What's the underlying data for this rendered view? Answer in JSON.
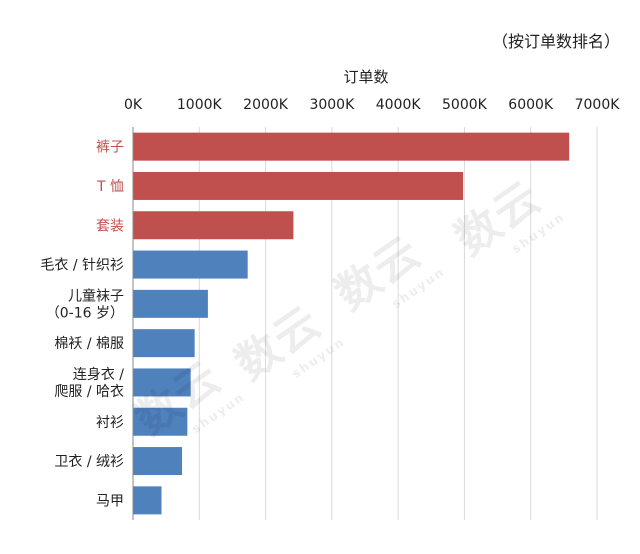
{
  "note": "（按订单数排名）",
  "watermark": {
    "cn": "数云",
    "en": "shuyun"
  },
  "chart_data": {
    "type": "bar",
    "orientation": "horizontal",
    "xlabel": "订单数",
    "xlim": [
      0,
      7000
    ],
    "xticks": [
      0,
      1000,
      2000,
      3000,
      4000,
      5000,
      6000,
      7000
    ],
    "xtick_labels": [
      "0K",
      "1000K",
      "2000K",
      "3000K",
      "4000K",
      "5000K",
      "6000K",
      "7000K"
    ],
    "grid": true,
    "categories": [
      [
        "裤子"
      ],
      [
        "T 恤"
      ],
      [
        "套装"
      ],
      [
        "毛衣 / 针织衫"
      ],
      [
        "儿童袜子",
        "（0-16 岁）"
      ],
      [
        "棉袄 / 棉服"
      ],
      [
        "连身衣 /",
        "爬服 / 哈衣"
      ],
      [
        "衬衫"
      ],
      [
        "卫衣 / 绒衫"
      ],
      [
        "马甲"
      ]
    ],
    "values": [
      6580,
      4980,
      2420,
      1730,
      1130,
      930,
      870,
      820,
      740,
      430
    ],
    "colors": [
      "#c0504d",
      "#c0504d",
      "#c0504d",
      "#4f81bd",
      "#4f81bd",
      "#4f81bd",
      "#4f81bd",
      "#4f81bd",
      "#4f81bd",
      "#4f81bd"
    ],
    "label_colors": [
      "#c0504d",
      "#c0504d",
      "#c0504d",
      "#222222",
      "#222222",
      "#222222",
      "#222222",
      "#222222",
      "#222222",
      "#222222"
    ]
  }
}
